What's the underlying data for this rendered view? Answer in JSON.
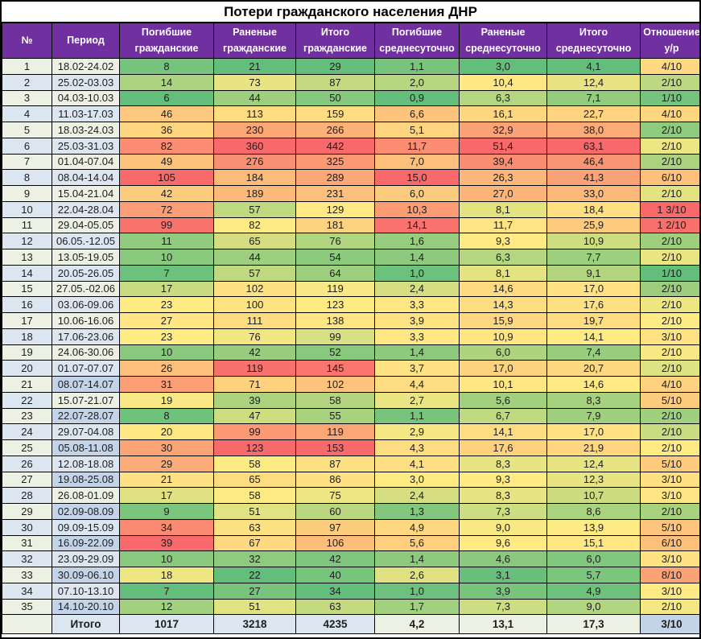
{
  "style": {
    "header_bg": "#7030A0",
    "header_text": "#FFFFFF",
    "title_text": "#000000",
    "border": "#000000",
    "shade_pale": "#EDF1E4",
    "shade_blue": "#DCE6F1",
    "shade_medblue": "#C4D4E8",
    "scale_green": "#63BE7B",
    "scale_yellow": "#FFEB84",
    "scale_red": "#F8696B",
    "text": "#1D1D1D"
  },
  "chart_data": {
    "type": "table",
    "title": "Потери гражданского населения ДНР",
    "columns": [
      "№",
      "Период",
      "Погибшие\nгражданские",
      "Раненые\nгражданские",
      "Итого\nгражданские",
      "Погибшие\nсреднесуточно",
      "Раненые\nсреднесуточно",
      "Итого\nсреднесуточно",
      "Отношение\nу/р"
    ],
    "rows": [
      [
        1,
        "18.02-24.02",
        8,
        21,
        29,
        "1,1",
        "3,0",
        "4,1",
        "4/10"
      ],
      [
        2,
        "25.02-03.03",
        14,
        73,
        87,
        "2,0",
        "10,4",
        "12,4",
        "2/10"
      ],
      [
        3,
        "04.03-10.03",
        6,
        44,
        50,
        "0,9",
        "6,3",
        "7,1",
        "1/10"
      ],
      [
        4,
        "11.03-17.03",
        46,
        113,
        159,
        "6,6",
        "16,1",
        "22,7",
        "4/10"
      ],
      [
        5,
        "18.03-24.03",
        36,
        230,
        266,
        "5,1",
        "32,9",
        "38,0",
        "2/10"
      ],
      [
        6,
        "25.03-31.03",
        82,
        360,
        442,
        "11,7",
        "51,4",
        "63,1",
        "2/10"
      ],
      [
        7,
        "01.04-07.04",
        49,
        276,
        325,
        "7,0",
        "39,4",
        "46,4",
        "2/10"
      ],
      [
        8,
        "08.04-14.04",
        105,
        184,
        289,
        "15,0",
        "26,3",
        "41,3",
        "6/10"
      ],
      [
        9,
        "15.04-21.04",
        42,
        189,
        231,
        "6,0",
        "27,0",
        "33,0",
        "2/10"
      ],
      [
        10,
        "22.04-28.04",
        72,
        57,
        129,
        "10,3",
        "8,1",
        "18,4",
        "1 3/10"
      ],
      [
        11,
        "29.04-05.05",
        99,
        82,
        181,
        "14,1",
        "11,7",
        "25,9",
        "1 2/10"
      ],
      [
        12,
        "06.05.-12.05",
        11,
        65,
        76,
        "1,6",
        "9,3",
        "10,9",
        "2/10"
      ],
      [
        13,
        "13.05-19.05",
        10,
        44,
        54,
        "1,4",
        "6,3",
        "7,7",
        "2/10"
      ],
      [
        14,
        "20.05-26.05",
        7,
        57,
        64,
        "1,0",
        "8,1",
        "9,1",
        "1/10"
      ],
      [
        15,
        "27.05.-02.06",
        17,
        102,
        119,
        "2,4",
        "14,6",
        "17,0",
        "2/10"
      ],
      [
        16,
        "03.06-09.06",
        23,
        100,
        123,
        "3,3",
        "14,3",
        "17,6",
        "2/10"
      ],
      [
        17,
        "10.06-16.06",
        27,
        111,
        138,
        "3,9",
        "15,9",
        "19,7",
        "2/10"
      ],
      [
        18,
        "17.06-23.06",
        23,
        76,
        99,
        "3,3",
        "10,9",
        "14,1",
        "3/10"
      ],
      [
        19,
        "24.06-30.06",
        10,
        42,
        52,
        "1,4",
        "6,0",
        "7,4",
        "2/10"
      ],
      [
        20,
        "01.07-07.07",
        26,
        119,
        145,
        "3,7",
        "17,0",
        "20,7",
        "2/10"
      ],
      [
        21,
        "08.07-14.07",
        31,
        71,
        102,
        "4,4",
        "10,1",
        "14,6",
        "4/10"
      ],
      [
        22,
        "15.07-21.07",
        19,
        39,
        58,
        "2,7",
        "5,6",
        "8,3",
        "5/10"
      ],
      [
        23,
        "22.07-28.07",
        8,
        47,
        55,
        "1,1",
        "6,7",
        "7,9",
        "2/10"
      ],
      [
        24,
        "29.07-04.08",
        20,
        99,
        119,
        "2,9",
        "14,1",
        "17,0",
        "2/10"
      ],
      [
        25,
        "05.08-11.08",
        30,
        123,
        153,
        "4,3",
        "17,6",
        "21,9",
        "2/10"
      ],
      [
        26,
        "12.08-18.08",
        29,
        58,
        87,
        "4,1",
        "8,3",
        "12,4",
        "5/10"
      ],
      [
        27,
        "19.08-25.08",
        21,
        65,
        86,
        "3,0",
        "9,3",
        "12,3",
        "3/10"
      ],
      [
        28,
        "26.08-01.09",
        17,
        58,
        75,
        "2,4",
        "8,3",
        "10,7",
        "3/10"
      ],
      [
        29,
        "02.09-08.09",
        9,
        51,
        60,
        "1,3",
        "7,3",
        "8,6",
        "2/10"
      ],
      [
        30,
        "09.09-15.09",
        34,
        63,
        97,
        "4,9",
        "9,0",
        "13,9",
        "5/10"
      ],
      [
        31,
        "16.09-22.09",
        39,
        67,
        106,
        "5,6",
        "9,6",
        "15,1",
        "6/10"
      ],
      [
        32,
        "23.09-29.09",
        10,
        32,
        42,
        "1,4",
        "4,6",
        "6,0",
        "3/10"
      ],
      [
        33,
        "30.09-06.10",
        18,
        22,
        40,
        "2,6",
        "3,1",
        "5,7",
        "8/10"
      ],
      [
        34,
        "07.10-13.10",
        7,
        27,
        34,
        "1,0",
        "3,9",
        "4,9",
        "3/10"
      ],
      [
        35,
        "14.10-20.10",
        12,
        51,
        63,
        "1,7",
        "7,3",
        "9,0",
        "2/10"
      ]
    ],
    "period_shades": [
      "p",
      "b",
      "p",
      "b",
      "p",
      "b",
      "p",
      "b",
      "p",
      "b",
      "p",
      "b",
      "p",
      "b",
      "p",
      "b",
      "p",
      "b",
      "p",
      "b",
      "m",
      "p",
      "m",
      "b",
      "m",
      "b",
      "m",
      "p",
      "m",
      "b",
      "m",
      "b",
      "m",
      "b",
      "m"
    ],
    "total_row": [
      "",
      "Итого",
      "1017",
      "3218",
      "4235",
      "4,2",
      "13,1",
      "17,3",
      "3/10"
    ]
  }
}
